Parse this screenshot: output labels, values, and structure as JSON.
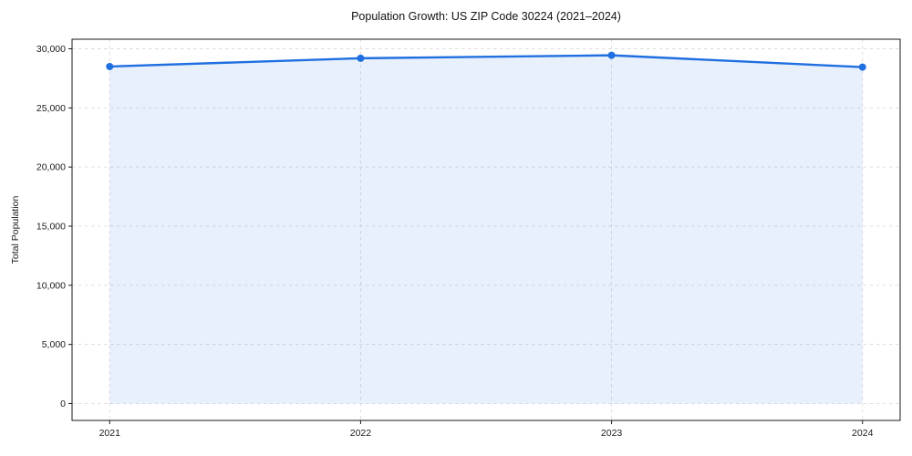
{
  "chart_data": {
    "type": "line",
    "title": "Population Growth: US ZIP Code 30224 (2021–2024)",
    "ylabel": "Total Population",
    "xlabel": "",
    "categories": [
      "2021",
      "2022",
      "2023",
      "2024"
    ],
    "x": [
      2021,
      2022,
      2023,
      2024
    ],
    "series": [
      {
        "name": "Total Population",
        "values": [
          28500,
          29200,
          29450,
          28450
        ]
      }
    ],
    "yticks": [
      0,
      5000,
      10000,
      15000,
      20000,
      25000,
      30000
    ],
    "ytick_labels": [
      "0",
      "5,000",
      "10,000",
      "15,000",
      "20,000",
      "25,000",
      "30,000"
    ],
    "xlim": [
      2020.85,
      2024.15
    ],
    "ylim": [
      -1430,
      30810
    ],
    "grid": true,
    "grid_style": "dashed",
    "area_fill": true,
    "legend": "none",
    "colors": {
      "line": "#1f6fe0",
      "fill": "#e8eefb",
      "fill_opacity": "0.10",
      "grid": "#dcdcdc",
      "spine": "#1a1a1a",
      "text": "#1a1a1a",
      "background": "#ffffff"
    }
  }
}
